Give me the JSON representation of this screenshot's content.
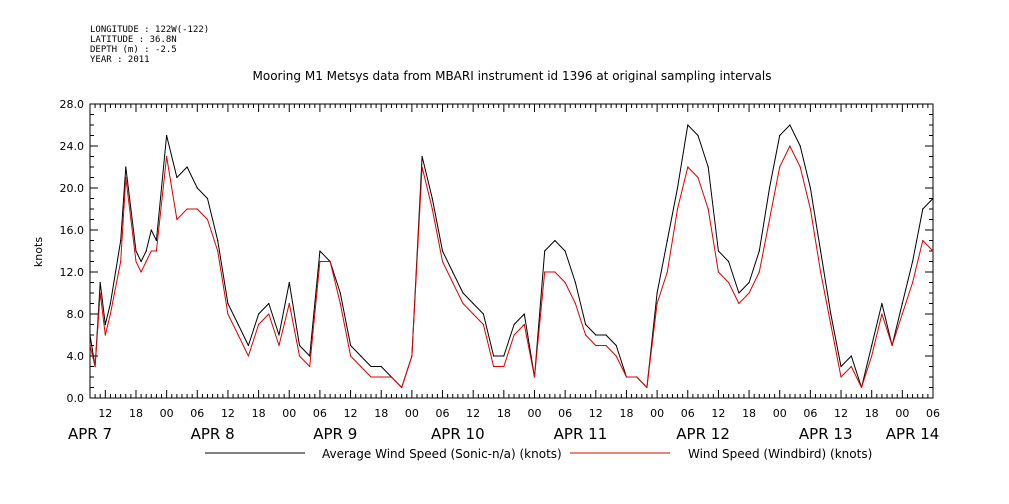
{
  "header": {
    "longitude": "LONGITUDE : 122W(-122)",
    "latitude": "LATITUDE : 36.8N",
    "depth": "DEPTH (m) : -2.5",
    "year": "YEAR : 2011"
  },
  "chart_data": {
    "type": "line",
    "title": "Mooring M1 Metsys data from MBARI instrument id 1396 at original sampling intervals",
    "ylabel": "knots",
    "xlabel": "",
    "ylim": [
      0,
      28
    ],
    "xlim": [
      9,
      174
    ],
    "x_unit": "hours since APR 7 00:00 (2011)",
    "y_ticks": [
      "0.0",
      "4.0",
      "8.0",
      "12.0",
      "16.0",
      "20.0",
      "24.0",
      "28.0"
    ],
    "x_hour_ticks": [
      "12",
      "18",
      "00",
      "06",
      "12",
      "18",
      "00",
      "06",
      "12",
      "18",
      "00",
      "06",
      "12",
      "18",
      "00",
      "06",
      "12",
      "18",
      "00",
      "06",
      "12",
      "18",
      "00",
      "06",
      "12",
      "18",
      "00",
      "06"
    ],
    "day_labels": [
      "APR  7",
      "APR  8",
      "APR  9",
      "APR 10",
      "APR 11",
      "APR 12",
      "APR 13",
      "APR 14"
    ],
    "legend_position": "bottom",
    "grid": false,
    "series": [
      {
        "name": "Average Wind Speed (Sonic-n/a) (knots)",
        "color": "#000000",
        "x": [
          9,
          10,
          11,
          12,
          13,
          15,
          16,
          17,
          18,
          19,
          20,
          21,
          22,
          24,
          26,
          28,
          30,
          32,
          34,
          36,
          38,
          40,
          42,
          44,
          46,
          48,
          50,
          52,
          54,
          56,
          58,
          60,
          62,
          64,
          66,
          68,
          70,
          72,
          74,
          76,
          78,
          80,
          82,
          84,
          86,
          88,
          90,
          92,
          94,
          96,
          98,
          100,
          102,
          104,
          106,
          108,
          110,
          112,
          114,
          116,
          118,
          120,
          122,
          124,
          126,
          128,
          130,
          132,
          134,
          136,
          138,
          140,
          142,
          144,
          146,
          148,
          150,
          152,
          154,
          156,
          158,
          160,
          162,
          164,
          166,
          168,
          170,
          172,
          174
        ],
        "y": [
          6,
          3,
          11,
          7,
          9,
          15,
          22,
          18,
          14,
          13,
          14,
          16,
          15,
          25,
          21,
          22,
          20,
          19,
          15,
          9,
          7,
          5,
          8,
          9,
          6,
          11,
          5,
          4,
          14,
          13,
          10,
          5,
          4,
          3,
          3,
          2,
          1,
          4,
          23,
          19,
          14,
          12,
          10,
          9,
          8,
          4,
          4,
          7,
          8,
          2,
          14,
          15,
          14,
          11,
          7,
          6,
          6,
          5,
          2,
          2,
          1,
          10,
          15,
          20,
          26,
          25,
          22,
          14,
          13,
          10,
          11,
          14,
          20,
          25,
          26,
          24,
          20,
          14,
          8,
          3,
          4,
          1,
          5,
          9,
          5,
          9,
          13,
          18,
          19
        ]
      },
      {
        "name": "Wind Speed (Windbird) (knots)",
        "color": "#dd0000",
        "x": [
          9,
          10,
          11,
          12,
          13,
          15,
          16,
          17,
          18,
          19,
          20,
          21,
          22,
          24,
          26,
          28,
          30,
          32,
          34,
          36,
          38,
          40,
          42,
          44,
          46,
          48,
          50,
          52,
          54,
          56,
          58,
          60,
          62,
          64,
          66,
          68,
          70,
          72,
          74,
          76,
          78,
          80,
          82,
          84,
          86,
          88,
          90,
          92,
          94,
          96,
          98,
          100,
          102,
          104,
          106,
          108,
          110,
          112,
          114,
          116,
          118,
          120,
          122,
          124,
          126,
          128,
          130,
          132,
          134,
          136,
          138,
          140,
          142,
          144,
          146,
          148,
          150,
          152,
          154,
          156,
          158,
          160,
          162,
          164,
          166,
          168,
          170,
          172,
          174
        ],
        "y": [
          5,
          3,
          10,
          6,
          8,
          13,
          21,
          17,
          13,
          12,
          13,
          14,
          14,
          23,
          17,
          18,
          18,
          17,
          14,
          8,
          6,
          4,
          7,
          8,
          5,
          9,
          4,
          3,
          13,
          13,
          9,
          4,
          3,
          2,
          2,
          2,
          1,
          4,
          22,
          18,
          13,
          11,
          9,
          8,
          7,
          3,
          3,
          6,
          7,
          2,
          12,
          12,
          11,
          9,
          6,
          5,
          5,
          4,
          2,
          2,
          1,
          9,
          12,
          18,
          22,
          21,
          18,
          12,
          11,
          9,
          10,
          12,
          17,
          22,
          24,
          22,
          18,
          12,
          7,
          2,
          3,
          1,
          4,
          8,
          5,
          8,
          11,
          15,
          14
        ]
      }
    ]
  }
}
